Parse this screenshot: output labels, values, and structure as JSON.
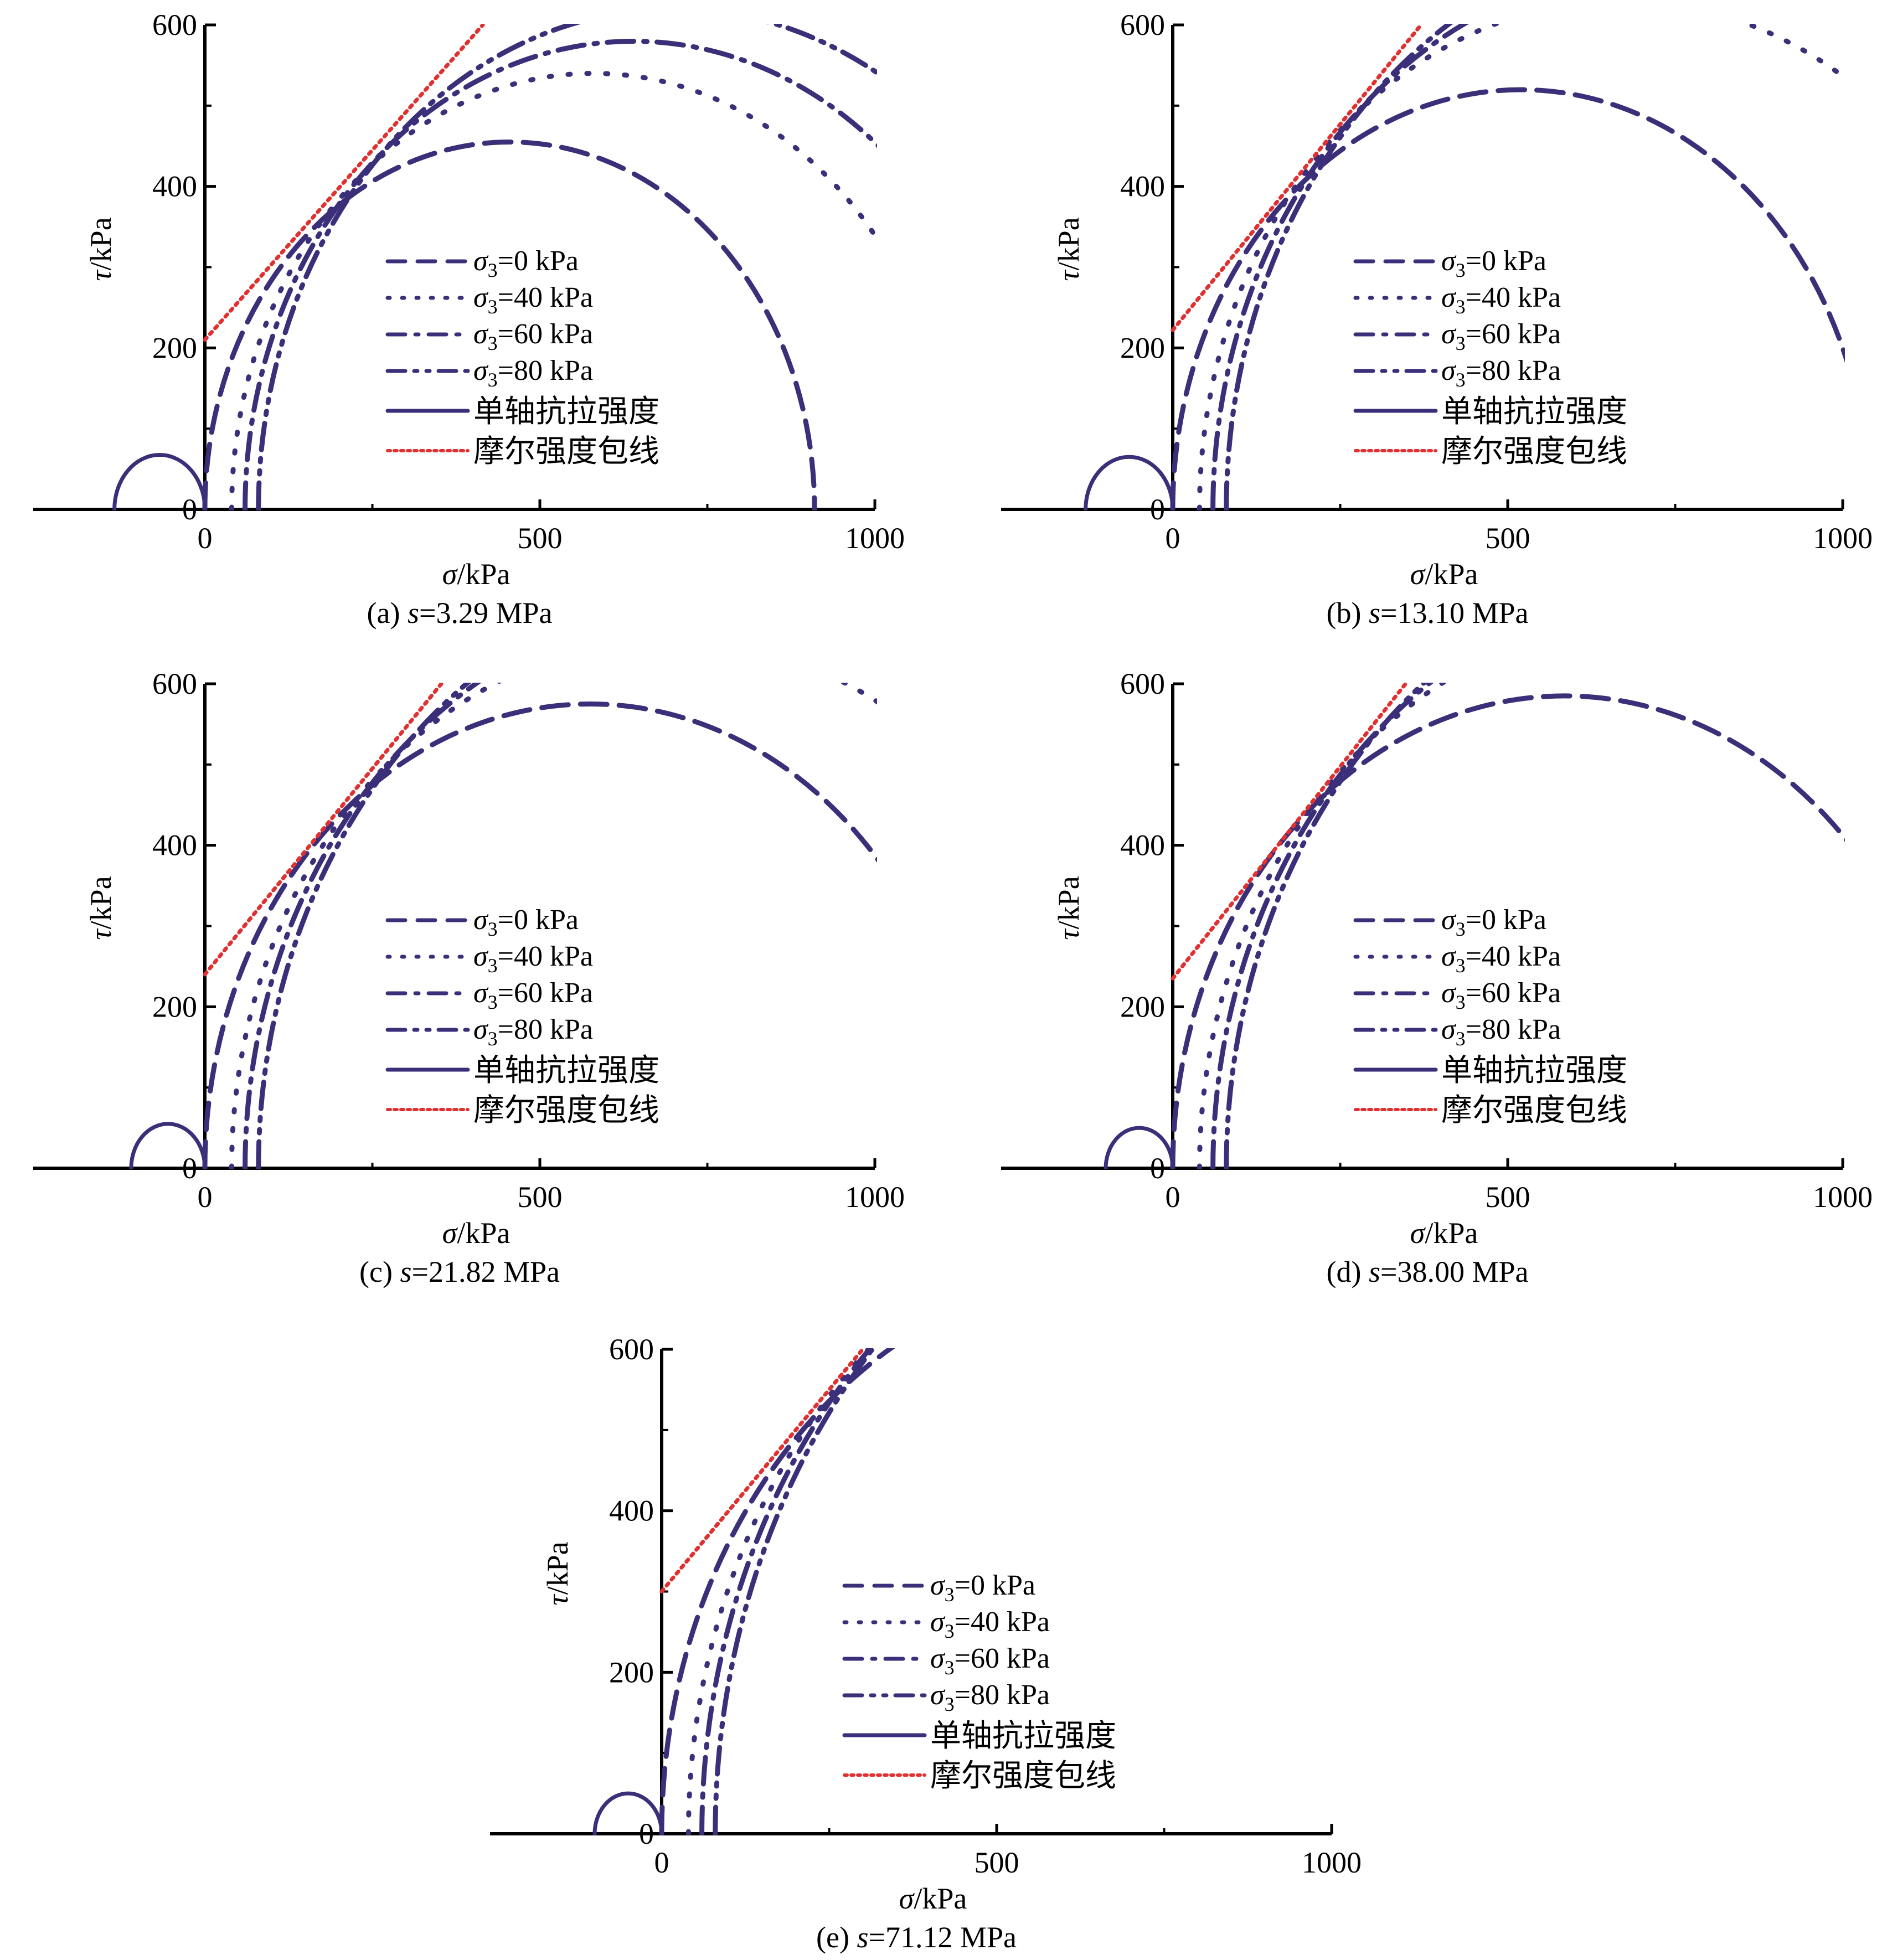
{
  "colors": {
    "circle": "#3b2f7a",
    "envelope": "#e03030",
    "axis": "#000000"
  },
  "chart_data": [
    {
      "type": "line",
      "panel": "(a)",
      "caption": {
        "prefix": "(a) ",
        "var": "s",
        "rest": "=3.29 MPa"
      },
      "xlabel": "σ/kPa",
      "ylabel": "τ/kPa",
      "xlim": [
        -250,
        1000
      ],
      "ylim": [
        0,
        600
      ],
      "xticks": [
        "0",
        "500",
        "1000"
      ],
      "yticks": [
        "0",
        "200",
        "400",
        "600"
      ],
      "legend_position": "center",
      "legend": [
        {
          "style": "dash",
          "label": "σ₃=0 kPa"
        },
        {
          "style": "dot",
          "label": "σ₃=40 kPa"
        },
        {
          "style": "dashdot",
          "label": "σ₃=60 kPa"
        },
        {
          "style": "dashdotdot",
          "label": "σ₃=80 kPa"
        },
        {
          "style": "solid",
          "label": "单轴抗拉强度"
        },
        {
          "style": "reddot",
          "label": "摩尔强度包线"
        }
      ],
      "mohr_circles": [
        {
          "name": "σ₃=0 kPa",
          "style": "dash",
          "sigma3": 0,
          "sigma1": 910
        },
        {
          "name": "σ₃=40 kPa",
          "style": "dot",
          "sigma3": 40,
          "sigma1": 1120
        },
        {
          "name": "σ₃=60 kPa",
          "style": "dashdot",
          "sigma3": 60,
          "sigma1": 1220
        },
        {
          "name": "σ₃=80 kPa",
          "style": "dashdotdot",
          "sigma3": 80,
          "sigma1": 1320
        },
        {
          "name": "单轴抗拉强度",
          "style": "solid",
          "sigma3": -135,
          "sigma1": 0
        }
      ],
      "envelope": {
        "name": "摩尔强度包线",
        "c": 210,
        "slope": 0.94
      }
    },
    {
      "type": "line",
      "panel": "(b)",
      "caption": {
        "prefix": "(b) ",
        "var": "s",
        "rest": "=13.10 MPa"
      },
      "xlabel": "σ/kPa",
      "ylabel": "τ/kPa",
      "xlim": [
        -250,
        1000
      ],
      "ylim": [
        0,
        600
      ],
      "xticks": [
        "0",
        "500",
        "1000"
      ],
      "yticks": [
        "0",
        "200",
        "400",
        "600"
      ],
      "legend_position": "center",
      "legend": [
        {
          "style": "dash",
          "label": "σ₃=0 kPa"
        },
        {
          "style": "dot",
          "label": "σ₃=40 kPa"
        },
        {
          "style": "dashdot",
          "label": "σ₃=60 kPa"
        },
        {
          "style": "dashdotdot",
          "label": "σ₃=80 kPa"
        },
        {
          "style": "solid",
          "label": "单轴抗拉强度"
        },
        {
          "style": "reddot",
          "label": "摩尔强度包线"
        }
      ],
      "mohr_circles": [
        {
          "name": "σ₃=0 kPa",
          "style": "dash",
          "sigma3": 0,
          "sigma1": 1040
        },
        {
          "name": "σ₃=40 kPa",
          "style": "dot",
          "sigma3": 40,
          "sigma1": 1300
        },
        {
          "name": "σ₃=60 kPa",
          "style": "dashdot",
          "sigma3": 60,
          "sigma1": 1400
        },
        {
          "name": "σ₃=80 kPa",
          "style": "dashdotdot",
          "sigma3": 80,
          "sigma1": 1500
        },
        {
          "name": "单轴抗拉强度",
          "style": "solid",
          "sigma3": -130,
          "sigma1": 0
        }
      ],
      "envelope": {
        "name": "摩尔强度包线",
        "c": 222,
        "slope": 1.02
      }
    },
    {
      "type": "line",
      "panel": "(c)",
      "caption": {
        "prefix": "(c) ",
        "var": "s",
        "rest": "=21.82 MPa"
      },
      "xlabel": "σ/kPa",
      "ylabel": "τ/kPa",
      "xlim": [
        -250,
        1000
      ],
      "ylim": [
        0,
        600
      ],
      "xticks": [
        "0",
        "500",
        "1000"
      ],
      "yticks": [
        "0",
        "200",
        "400",
        "600"
      ],
      "legend_position": "center",
      "legend": [
        {
          "style": "dash",
          "label": "σ₃=0 kPa"
        },
        {
          "style": "dot",
          "label": "σ₃=40 kPa"
        },
        {
          "style": "dashdot",
          "label": "σ₃=60 kPa"
        },
        {
          "style": "dashdotdot",
          "label": "σ₃=80 kPa"
        },
        {
          "style": "solid",
          "label": "单轴抗拉强度"
        },
        {
          "style": "reddot",
          "label": "摩尔强度包线"
        }
      ],
      "mohr_circles": [
        {
          "name": "σ₃=0 kPa",
          "style": "dash",
          "sigma3": 0,
          "sigma1": 1150
        },
        {
          "name": "σ₃=40 kPa",
          "style": "dot",
          "sigma3": 40,
          "sigma1": 1350
        },
        {
          "name": "σ₃=60 kPa",
          "style": "dashdot",
          "sigma3": 60,
          "sigma1": 1450
        },
        {
          "name": "σ₃=80 kPa",
          "style": "dashdotdot",
          "sigma3": 80,
          "sigma1": 1550
        },
        {
          "name": "单轴抗拉强度",
          "style": "solid",
          "sigma3": -110,
          "sigma1": 0
        }
      ],
      "envelope": {
        "name": "摩尔强度包线",
        "c": 240,
        "slope": 1.02
      }
    },
    {
      "type": "line",
      "panel": "(d)",
      "caption": {
        "prefix": "(d) ",
        "var": "s",
        "rest": "=38.00 MPa"
      },
      "xlabel": "σ/kPa",
      "ylabel": "τ/kPa",
      "xlim": [
        -250,
        1000
      ],
      "ylim": [
        0,
        600
      ],
      "xticks": [
        "0",
        "500",
        "1000"
      ],
      "yticks": [
        "0",
        "200",
        "400",
        "600"
      ],
      "legend_position": "center",
      "legend": [
        {
          "style": "dash",
          "label": "σ₃=0 kPa"
        },
        {
          "style": "dot",
          "label": "σ₃=40 kPa"
        },
        {
          "style": "dashdot",
          "label": "σ₃=60 kPa"
        },
        {
          "style": "dashdotdot",
          "label": "σ₃=80 kPa"
        },
        {
          "style": "solid",
          "label": "单轴抗拉强度"
        },
        {
          "style": "reddot",
          "label": "摩尔强度包线"
        }
      ],
      "mohr_circles": [
        {
          "name": "σ₃=0 kPa",
          "style": "dash",
          "sigma3": 0,
          "sigma1": 1170
        },
        {
          "name": "σ₃=40 kPa",
          "style": "dot",
          "sigma3": 40,
          "sigma1": 1400
        },
        {
          "name": "σ₃=60 kPa",
          "style": "dashdot",
          "sigma3": 60,
          "sigma1": 1500
        },
        {
          "name": "σ₃=80 kPa",
          "style": "dashdotdot",
          "sigma3": 80,
          "sigma1": 1600
        },
        {
          "name": "单轴抗拉强度",
          "style": "solid",
          "sigma3": -100,
          "sigma1": 0
        }
      ],
      "envelope": {
        "name": "摩尔强度包线",
        "c": 235,
        "slope": 1.05
      }
    },
    {
      "type": "line",
      "panel": "(e)",
      "caption": {
        "prefix": "(e) ",
        "var": "s",
        "rest": "=71.12 MPa"
      },
      "xlabel": "σ/kPa",
      "ylabel": "τ/kPa",
      "xlim": [
        -250,
        1000
      ],
      "ylim": [
        0,
        600
      ],
      "xticks": [
        "0",
        "500",
        "1000"
      ],
      "yticks": [
        "0",
        "200",
        "400",
        "600"
      ],
      "legend_position": "center",
      "legend": [
        {
          "style": "dash",
          "label": "σ₃=0 kPa"
        },
        {
          "style": "dot",
          "label": "σ₃=40 kPa"
        },
        {
          "style": "dashdot",
          "label": "σ₃=60 kPa"
        },
        {
          "style": "dashdotdot",
          "label": "σ₃=80 kPa"
        },
        {
          "style": "solid",
          "label": "单轴抗拉强度"
        },
        {
          "style": "reddot",
          "label": "摩尔强度包线"
        }
      ],
      "mohr_circles": [
        {
          "name": "σ₃=0 kPa",
          "style": "dash",
          "sigma3": 0,
          "sigma1": 1400
        },
        {
          "name": "σ₃=40 kPa",
          "style": "dot",
          "sigma3": 40,
          "sigma1": 1650
        },
        {
          "name": "σ₃=60 kPa",
          "style": "dashdot",
          "sigma3": 60,
          "sigma1": 1750
        },
        {
          "name": "σ₃=80 kPa",
          "style": "dashdotdot",
          "sigma3": 80,
          "sigma1": 1850
        },
        {
          "name": "单轴抗拉强度",
          "style": "solid",
          "sigma3": -100,
          "sigma1": 0
        }
      ],
      "envelope": {
        "name": "摩尔强度包线",
        "c": 300,
        "slope": 1.0
      }
    }
  ]
}
